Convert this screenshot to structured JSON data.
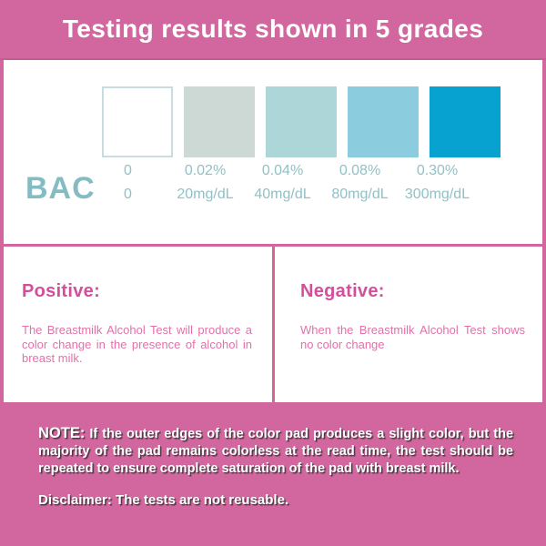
{
  "header": {
    "title": "Testing results shown in 5 grades"
  },
  "grades": {
    "row_label": "BAC",
    "items": [
      {
        "bac_percent": "0",
        "concentration": "0",
        "color": "#ffffff",
        "border_color": "#c9dde1"
      },
      {
        "bac_percent": "0.02%",
        "concentration": "20mg/dL",
        "color": "#ccd9d5"
      },
      {
        "bac_percent": "0.04%",
        "concentration": "40mg/dL",
        "color": "#acd6d8"
      },
      {
        "bac_percent": "0.08%",
        "concentration": "80mg/dL",
        "color": "#8bcdde"
      },
      {
        "bac_percent": "0.30%",
        "concentration": "300mg/dL",
        "color": "#07a2cf"
      }
    ]
  },
  "results": {
    "positive": {
      "heading": "Positive:",
      "body": "The Breastmilk Alcohol Test will produce a color change in the presence of alcohol in breast milk."
    },
    "negative": {
      "heading": "Negative:",
      "body": "When the Breastmilk Alcohol Test shows no color change"
    }
  },
  "footer": {
    "note_label": "NOTE:",
    "note_body": "If the outer edges of the color pad produces a slight color, but the majority of the pad remains colorless at the read time, the test should be repeated to ensure complete saturation of the pad with breast milk.",
    "disclaimer": "Disclaimer: The tests are not reusable."
  },
  "colors": {
    "background_pink": "#d2669e",
    "heading_pink": "#d44f9b",
    "body_text_pink": "#e271aa",
    "label_teal": "#8fc1c7",
    "note_text_white": "#ffffff",
    "note_shadow_dark": "#2d2d2d"
  }
}
